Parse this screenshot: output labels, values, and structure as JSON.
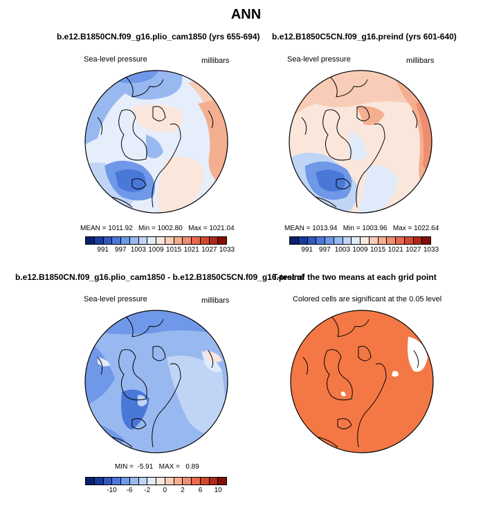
{
  "title": "ANN",
  "panels": [
    {
      "id": "pliocene",
      "title": "b.e12.B1850CN.f09_g16.plio_cam1850 (yrs 655-694)",
      "left_label": "Sea-level pressure",
      "right_label": "millibars",
      "stats": {
        "mean": "1011.92",
        "min": "1002.80",
        "max": "1021.04"
      },
      "colorbar_ticks": [
        "991",
        "997",
        "1003",
        "1009",
        "1015",
        "1021",
        "1027",
        "1033"
      ]
    },
    {
      "id": "preindustrial",
      "title": "b.e12.B1850C5CN.f09_g16.preind (yrs 601-640)",
      "left_label": "Sea-level pressure",
      "right_label": "millibars",
      "stats": {
        "mean": "1013.94",
        "min": "1003.96",
        "max": "1022.64"
      },
      "colorbar_ticks": [
        "991",
        "997",
        "1003",
        "1009",
        "1015",
        "1021",
        "1027",
        "1033"
      ]
    },
    {
      "id": "difference",
      "title": "b.e12.B1850CN.f09_g16.plio_cam1850 - b.e12.B1850C5CN.f09_g16.preind",
      "left_label": "Sea-level pressure",
      "right_label": "millibars",
      "stats": {
        "min": "-5.91",
        "max": "0.89"
      },
      "colorbar_ticks": [
        "-10",
        "-6",
        "-2",
        "0",
        "2",
        "6",
        "10"
      ]
    },
    {
      "id": "ttest",
      "title": "T-test of the two means at each grid point",
      "left_label": "Colored cells are significant at the 0.05 level"
    }
  ],
  "stat_labels": {
    "mean": "MEAN =",
    "min": "Min =",
    "max": "Max =",
    "min_upper": "MIN =",
    "max_upper": "MAX ="
  },
  "colors": {
    "abs_scale": [
      "#08206e",
      "#1a3a9a",
      "#2f58c0",
      "#4a78d8",
      "#7098e8",
      "#98b8f0",
      "#c0d4f6",
      "#e0eafa",
      "#fbe6dc",
      "#f8ccb6",
      "#f4ae90",
      "#ee8e6e",
      "#e66a4c",
      "#d04830",
      "#b02818",
      "#801008"
    ],
    "diff_scale": [
      "#08206e",
      "#1a3a9a",
      "#2f58c0",
      "#4a78d8",
      "#7098e8",
      "#98b8f0",
      "#c0d4f6",
      "#e0eafa",
      "#fbe6dc",
      "#f8ccb6",
      "#f4ae90",
      "#ee8e6e",
      "#e66a4c",
      "#d04830",
      "#b02818",
      "#801008"
    ],
    "significant": "#f47845"
  },
  "chart_data": [
    {
      "type": "heatmap",
      "title": "b.e12.B1850CN.f09_g16.plio_cam1850 (yrs 655-694)",
      "variable": "Sea-level pressure",
      "units": "millibars",
      "projection": "north polar stereographic",
      "mean": 1011.92,
      "min": 1002.8,
      "max": 1021.04,
      "colorbar_levels": [
        991,
        997,
        1003,
        1009,
        1015,
        1021,
        1027,
        1033
      ]
    },
    {
      "type": "heatmap",
      "title": "b.e12.B1850C5CN.f09_g16.preind (yrs 601-640)",
      "variable": "Sea-level pressure",
      "units": "millibars",
      "projection": "north polar stereographic",
      "mean": 1013.94,
      "min": 1003.96,
      "max": 1022.64,
      "colorbar_levels": [
        991,
        997,
        1003,
        1009,
        1015,
        1021,
        1027,
        1033
      ]
    },
    {
      "type": "heatmap",
      "title": "b.e12.B1850CN.f09_g16.plio_cam1850 - b.e12.B1850C5CN.f09_g16.preind",
      "variable": "Sea-level pressure",
      "units": "millibars",
      "projection": "north polar stereographic",
      "min": -5.91,
      "max": 0.89,
      "colorbar_levels": [
        -10,
        -6,
        -2,
        0,
        2,
        6,
        10
      ]
    },
    {
      "type": "heatmap",
      "title": "T-test of the two means at each grid point",
      "subtitle": "Colored cells are significant at the 0.05 level",
      "projection": "north polar stereographic"
    }
  ]
}
